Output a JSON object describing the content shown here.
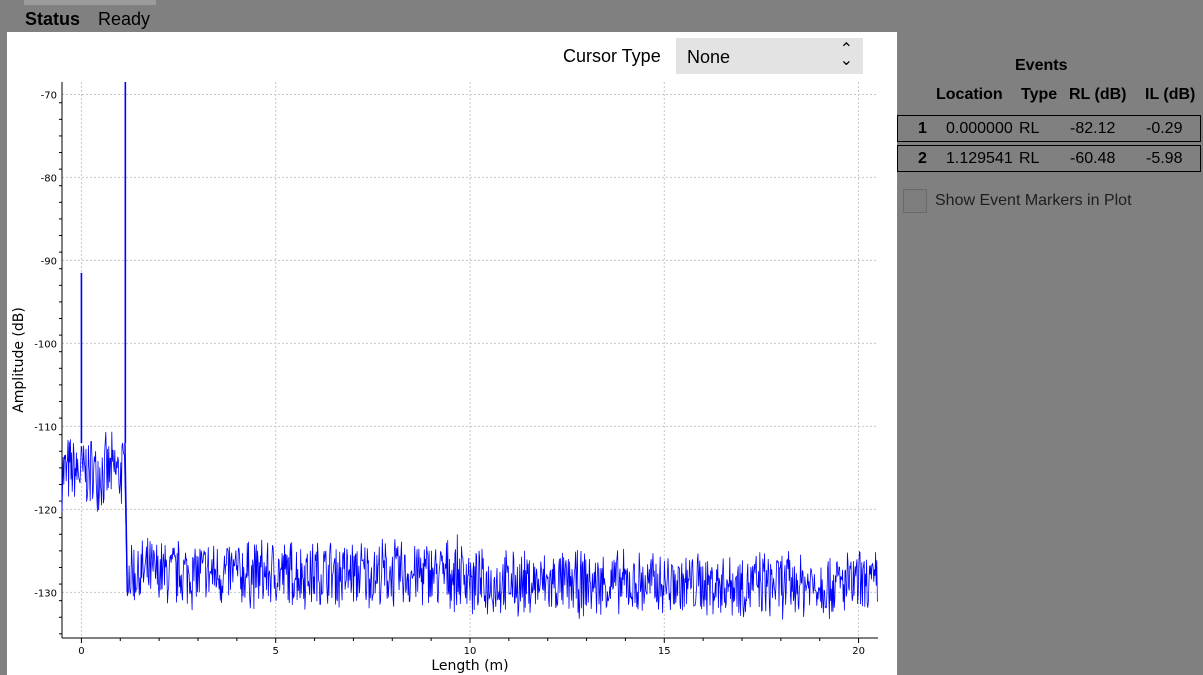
{
  "status": {
    "label": "Status",
    "value": "Ready"
  },
  "cursor": {
    "label": "Cursor Type",
    "selected": "None"
  },
  "events": {
    "title": "Events",
    "columns": [
      "Location",
      "Type",
      "RL (dB)",
      "IL (dB)"
    ],
    "rows": [
      {
        "index": "1",
        "location": "0.000000",
        "type": "RL",
        "rl": "-82.12",
        "il": "-0.29"
      },
      {
        "index": "2",
        "location": "1.129541",
        "type": "RL",
        "rl": "-60.48",
        "il": "-5.98"
      }
    ]
  },
  "show_markers": {
    "label": "Show Event Markers in Plot",
    "checked": false
  },
  "colors": {
    "trace": "#0000ff",
    "grid": "#c8c8c8",
    "panel_bg": "#808080"
  },
  "chart_data": {
    "type": "line",
    "xlabel": "Length (m)",
    "ylabel": "Amplitude (dB)",
    "xlim": [
      -0.5,
      20.5
    ],
    "ylim": [
      -135.5,
      -68.5
    ],
    "xticks": [
      0,
      5,
      10,
      15,
      20
    ],
    "yticks": [
      -70,
      -80,
      -90,
      -100,
      -110,
      -120,
      -130
    ],
    "grid": true,
    "series": [
      {
        "color": "#0000ff",
        "segments": [
          {
            "x": [
              -0.5,
              1.12
            ],
            "noise_range": [
              -120.5,
              -110.5
            ]
          },
          {
            "x": [
              1.18,
              10.0
            ],
            "noise_range": [
              -132.5,
              -123.0
            ]
          },
          {
            "x": [
              10.0,
              20.5
            ],
            "noise_range": [
              -133.5,
              -124.5
            ]
          }
        ],
        "peaks": [
          {
            "x": 0.0,
            "y": -91.5
          },
          {
            "x": 1.13,
            "y": -68.5
          }
        ]
      }
    ]
  }
}
